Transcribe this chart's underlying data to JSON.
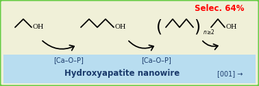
{
  "bg_color": "#f0f0d8",
  "border_color": "#66cc44",
  "blue_bar_color": "#b8ddf0",
  "title_text": "Hydroxyapatite nanowire",
  "selec_text": "Selec. 64%",
  "selec_color": "#ff0000",
  "label1": "[Ca–O–P]",
  "label2": "[Ca–O–P]",
  "label3": "[001] →",
  "fig_width": 3.78,
  "fig_height": 1.26,
  "dpi": 100
}
